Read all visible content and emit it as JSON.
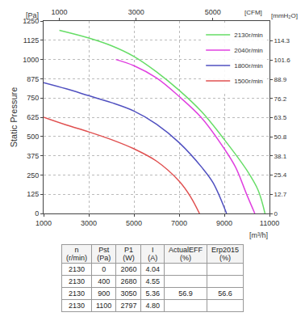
{
  "chart_data": {
    "type": "line",
    "y_title": "Static Pressure",
    "x_unit": "[m³/h]",
    "x2_unit": "[CFM]",
    "y_unit": "[Pa]",
    "y2_unit": "[mmH₂O]",
    "xlim": [
      1000,
      11000
    ],
    "xticks": [
      1000,
      3000,
      5000,
      7000,
      9000,
      11000
    ],
    "x2lim": [
      588.6,
      6474.4
    ],
    "x2ticks": [
      1000,
      3000,
      5000
    ],
    "ylim": [
      0,
      1250
    ],
    "yticks": [
      0,
      125,
      250,
      375,
      500,
      625,
      750,
      875,
      1000,
      1125,
      1250
    ],
    "y2lim": [
      0,
      127.5
    ],
    "y2ticks": [
      0,
      12.7,
      25.4,
      38.1,
      50.8,
      63.5,
      76.2,
      88.9,
      101.6,
      114.3
    ],
    "grid": true,
    "legend": "top right",
    "series": [
      {
        "name": "2130r/min",
        "color": "#66dd66",
        "x": [
          1700,
          3000,
          4000,
          5000,
          6000,
          7000,
          8000,
          9000,
          10000,
          10500,
          10800
        ],
        "values": [
          1190,
          1140,
          1090,
          1020,
          920,
          800,
          660,
          480,
          280,
          150,
          0
        ]
      },
      {
        "name": "2040r/min",
        "color": "#e040e0",
        "x": [
          4200,
          5000,
          6000,
          7000,
          8000,
          9000,
          9500,
          10000,
          10350
        ],
        "values": [
          1000,
          960,
          880,
          760,
          620,
          420,
          300,
          120,
          0
        ]
      },
      {
        "name": "1800r/min",
        "color": "#5050c0",
        "x": [
          1000,
          2000,
          3000,
          4000,
          5000,
          6000,
          7000,
          8000,
          8500,
          9100
        ],
        "values": [
          850,
          810,
          765,
          720,
          665,
          580,
          460,
          300,
          200,
          0
        ]
      },
      {
        "name": "1500r/min",
        "color": "#e05050",
        "x": [
          1000,
          2000,
          3000,
          4000,
          5000,
          6000,
          7000,
          7500,
          7900
        ],
        "values": [
          625,
          575,
          530,
          480,
          420,
          340,
          210,
          110,
          0
        ]
      }
    ]
  },
  "table": {
    "header": [
      [
        "n",
        "(r/min)"
      ],
      [
        "Pst",
        "(Pa)"
      ],
      [
        "P1",
        "(W)"
      ],
      [
        "I",
        "(A)"
      ],
      [
        "ActualEFF",
        "(%)"
      ],
      [
        "Erp2015",
        "(%)"
      ]
    ],
    "rows": [
      [
        2130,
        0,
        2060,
        4.04,
        null,
        null
      ],
      [
        2130,
        400,
        2680,
        4.55,
        null,
        null
      ],
      [
        2130,
        900,
        3050,
        5.36,
        56.9,
        56.6
      ],
      [
        2130,
        1100,
        2797,
        4.8,
        null,
        null
      ]
    ]
  }
}
